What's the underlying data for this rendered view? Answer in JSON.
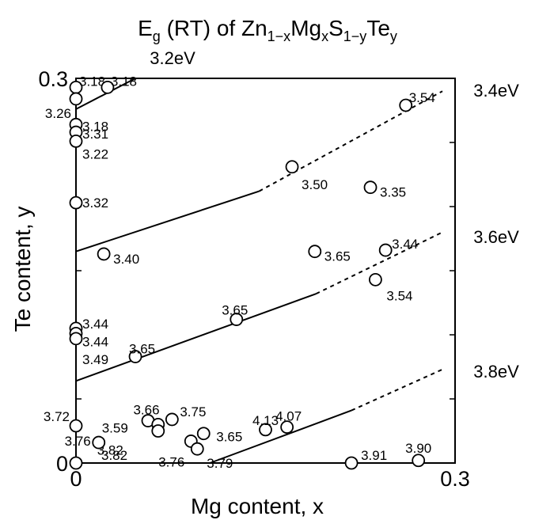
{
  "chart_data": {
    "type": "scatter",
    "title": {
      "base": "E",
      "base_sub": "g",
      "mid": " (RT) of Zn",
      "sub1": "1−x",
      "t2": "Mg",
      "sub2": "x",
      "t3": "S",
      "sub3": "1−y",
      "t4": "Te",
      "sub4": "y"
    },
    "xlabel": "Mg content, x",
    "ylabel": "Te content, y",
    "xlim": [
      0,
      0.3
    ],
    "ylim": [
      0,
      0.3
    ],
    "x_ticks": [
      {
        "value": 0,
        "label": "0"
      },
      {
        "value": 0.3,
        "label": "0.3"
      }
    ],
    "y_ticks": [
      {
        "value": 0,
        "label": "0"
      },
      {
        "value": 0.3,
        "label": "0.3"
      }
    ],
    "grid": false,
    "points": [
      {
        "x": 0.0,
        "y": 0.293,
        "label": "3.18"
      },
      {
        "x": 0.025,
        "y": 0.293,
        "label": "3.18"
      },
      {
        "x": 0.0,
        "y": 0.284,
        "label": "3.26"
      },
      {
        "x": 0.0,
        "y": 0.264,
        "label": "3.18"
      },
      {
        "x": 0.0,
        "y": 0.258,
        "label": "3.31"
      },
      {
        "x": 0.0,
        "y": 0.251,
        "label": "3.22"
      },
      {
        "x": 0.0,
        "y": 0.203,
        "label": "3.32"
      },
      {
        "x": 0.261,
        "y": 0.279,
        "label": "3.54"
      },
      {
        "x": 0.171,
        "y": 0.231,
        "label": "3.50"
      },
      {
        "x": 0.233,
        "y": 0.215,
        "label": "3.35"
      },
      {
        "x": 0.022,
        "y": 0.163,
        "label": "3.40"
      },
      {
        "x": 0.189,
        "y": 0.165,
        "label": "3.65"
      },
      {
        "x": 0.245,
        "y": 0.166,
        "label": "3.44"
      },
      {
        "x": 0.237,
        "y": 0.143,
        "label": "3.54"
      },
      {
        "x": 0.127,
        "y": 0.112,
        "label": "3.65"
      },
      {
        "x": 0.0,
        "y": 0.105,
        "label": "3.44"
      },
      {
        "x": 0.0,
        "y": 0.101,
        "label": "3.44"
      },
      {
        "x": 0.0,
        "y": 0.097,
        "label": "3.49"
      },
      {
        "x": 0.047,
        "y": 0.083,
        "label": "3.65"
      },
      {
        "x": 0.0,
        "y": 0.029,
        "label": "3.72"
      },
      {
        "x": 0.057,
        "y": 0.033,
        "label": "3.66"
      },
      {
        "x": 0.065,
        "y": 0.03,
        "label": "3.59"
      },
      {
        "x": 0.065,
        "y": 0.025,
        "label": "3.82"
      },
      {
        "x": 0.076,
        "y": 0.034,
        "label": "3.75"
      },
      {
        "x": 0.018,
        "y": 0.016,
        "label": "3.76"
      },
      {
        "x": 0.091,
        "y": 0.017,
        "label": "3.76"
      },
      {
        "x": 0.096,
        "y": 0.011,
        "label": "3.79"
      },
      {
        "x": 0.101,
        "y": 0.023,
        "label": "3.65"
      },
      {
        "x": 0.15,
        "y": 0.026,
        "label": "4.13"
      },
      {
        "x": 0.167,
        "y": 0.028,
        "label": "4.07"
      },
      {
        "x": 0.0,
        "y": 0.0,
        "label": "3.82"
      },
      {
        "x": 0.218,
        "y": 0.0,
        "label": "3.91"
      },
      {
        "x": 0.271,
        "y": 0.002,
        "label": "3.90"
      }
    ],
    "contours": [
      {
        "label": "3.2eV",
        "solid": [
          [
            0.0,
            0.276
          ],
          [
            0.047,
            0.3
          ]
        ],
        "dashed": []
      },
      {
        "label": "3.4eV",
        "solid": [
          [
            0.0,
            0.165
          ],
          [
            0.145,
            0.212
          ]
        ],
        "dashed": [
          [
            0.145,
            0.212
          ],
          [
            0.29,
            0.29
          ]
        ]
      },
      {
        "label": "3.6eV",
        "solid": [
          [
            0.0,
            0.064
          ],
          [
            0.19,
            0.132
          ]
        ],
        "dashed": [
          [
            0.19,
            0.132
          ],
          [
            0.29,
            0.18
          ]
        ]
      },
      {
        "label": "3.8eV",
        "solid": [
          [
            0.106,
            0.0
          ],
          [
            0.218,
            0.041
          ]
        ],
        "dashed": [
          [
            0.218,
            0.041
          ],
          [
            0.29,
            0.073
          ]
        ]
      }
    ]
  }
}
